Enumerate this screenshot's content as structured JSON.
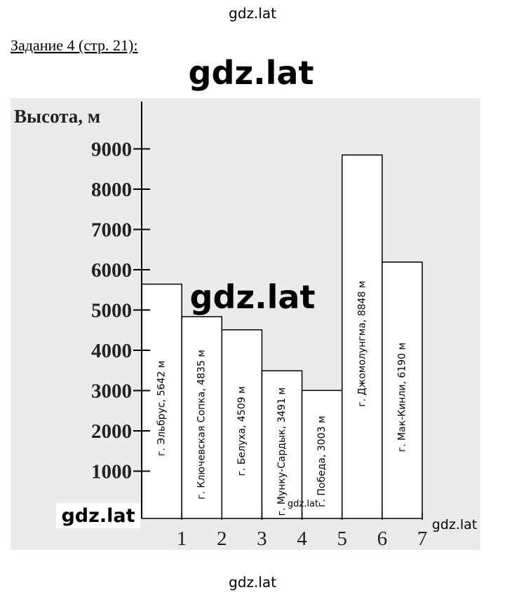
{
  "header": "gdz.lat",
  "task": "Задание 4 (стр. 21):",
  "watermarks": [
    "gdz.lat",
    "gdz.lat",
    "gdz.lat",
    "gdz.lat",
    "gdz.lat",
    "gdz.lat"
  ],
  "chart_data": {
    "type": "bar",
    "ylabel": "Высота, м",
    "categories": [
      "г. Эльбрус, 5642 м",
      "г. Ключевская Сопка, 4835 м",
      "г. Белуха, 4509 м",
      "г. Мунку-Сардык, 3491 м",
      "г. Победа, 3003 м",
      "г. Джомолунгма, 8848 м",
      "г. Мак-Кинли, 6190 м"
    ],
    "values": [
      5642,
      4835,
      4509,
      3491,
      3003,
      8848,
      6190
    ],
    "color": "#ffffff",
    "xlim": [
      0,
      7
    ],
    "xticks": [
      1,
      2,
      3,
      4,
      5,
      6,
      7
    ],
    "ylim": [
      0,
      10000
    ],
    "yticks": [
      1000,
      2000,
      3000,
      4000,
      5000,
      6000,
      7000,
      8000,
      9000
    ]
  }
}
